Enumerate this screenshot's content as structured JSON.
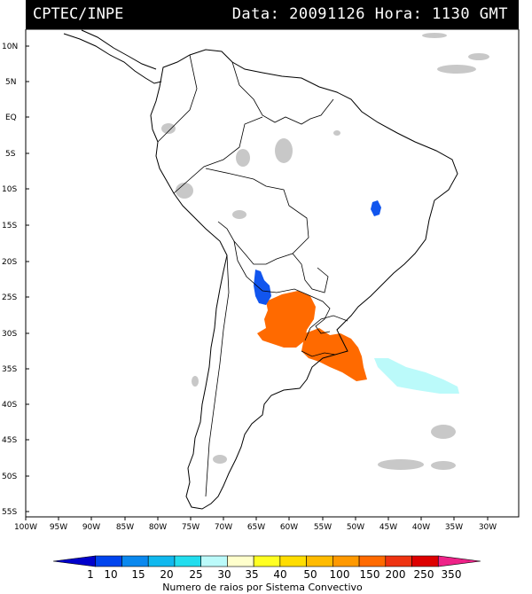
{
  "header": {
    "source": "CPTEC/INPE",
    "info": "Data: 20091126 Hora: 1130 GMT"
  },
  "map": {
    "lat_labels": [
      "10N",
      "5N",
      "EQ",
      "5S",
      "10S",
      "15S",
      "20S",
      "25S",
      "30S",
      "35S",
      "40S",
      "45S",
      "50S",
      "55S"
    ],
    "lon_labels": [
      "100W",
      "95W",
      "90W",
      "85W",
      "80W",
      "75W",
      "70W",
      "65W",
      "60W",
      "55W",
      "50W",
      "45W",
      "40W",
      "35W",
      "30W"
    ],
    "background_color": "#ffffff",
    "cloud_color": "#c8c8c8"
  },
  "colorbar": {
    "labels": [
      "1",
      "10",
      "15",
      "20",
      "25",
      "30",
      "35",
      "40",
      "50",
      "100",
      "150",
      "200",
      "250",
      "350"
    ],
    "colors": [
      "#0000cc",
      "#0044ee",
      "#0a88ee",
      "#10b8ee",
      "#22ddee",
      "#bbfafa",
      "#ffffcc",
      "#ffff22",
      "#ffdd00",
      "#ffbb00",
      "#ff9900",
      "#ff6a00",
      "#ee3311",
      "#dd0000",
      "#ee2288"
    ],
    "title": "Numero de raios por Sistema Convectivo"
  }
}
